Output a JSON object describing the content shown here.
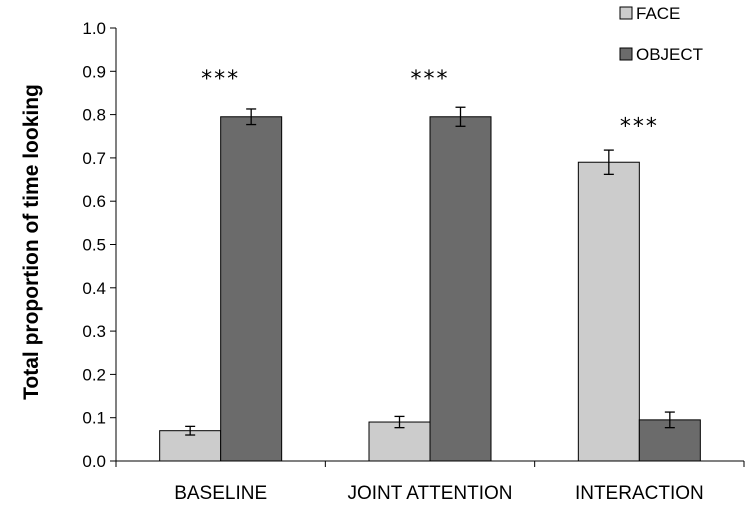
{
  "chart_data": {
    "type": "bar",
    "categories": [
      "BASELINE",
      "JOINT ATTENTION",
      "INTERACTION"
    ],
    "series": [
      {
        "name": "FACE",
        "color": "#cccccc",
        "values": [
          0.07,
          0.09,
          0.69
        ],
        "errors": [
          0.01,
          0.013,
          0.028
        ]
      },
      {
        "name": "OBJECT",
        "color": "#6b6b6b",
        "values": [
          0.795,
          0.795,
          0.095
        ],
        "errors": [
          0.018,
          0.022,
          0.018
        ]
      }
    ],
    "ylabel": "Total proportion of time looking",
    "ylim": [
      0,
      1.0
    ],
    "yticks": [
      "0.0",
      "0.1",
      "0.2",
      "0.3",
      "0.4",
      "0.5",
      "0.6",
      "0.7",
      "0.8",
      "0.9",
      "1.0"
    ],
    "annotations": [
      {
        "text": "***",
        "category": "BASELINE",
        "y": 0.885
      },
      {
        "text": "***",
        "category": "JOINT ATTENTION",
        "y": 0.885
      },
      {
        "text": "***",
        "category": "INTERACTION",
        "y": 0.775
      }
    ],
    "legend": "top-right"
  }
}
